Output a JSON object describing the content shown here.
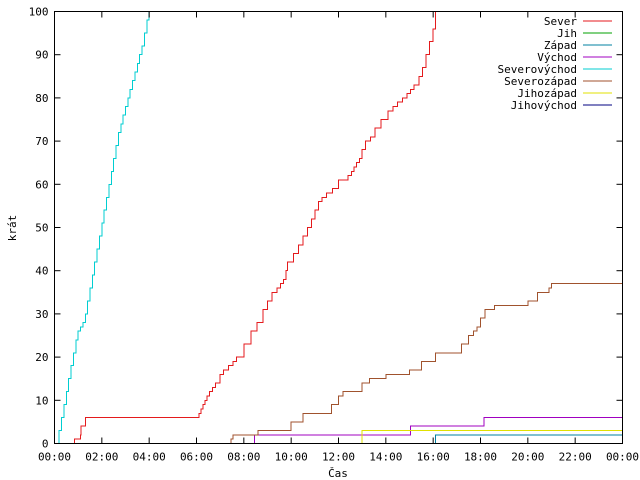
{
  "chart_data": {
    "type": "line",
    "xlabel": "Čas",
    "ylabel": "krát",
    "xlim": [
      0,
      24
    ],
    "ylim": [
      0,
      100
    ],
    "x_ticks": [
      {
        "value": 0,
        "label": "00:00"
      },
      {
        "value": 2,
        "label": "02:00"
      },
      {
        "value": 4,
        "label": "04:00"
      },
      {
        "value": 6,
        "label": "06:00"
      },
      {
        "value": 8,
        "label": "08:00"
      },
      {
        "value": 10,
        "label": "10:00"
      },
      {
        "value": 12,
        "label": "12:00"
      },
      {
        "value": 14,
        "label": "14:00"
      },
      {
        "value": 16,
        "label": "16:00"
      },
      {
        "value": 18,
        "label": "18:00"
      },
      {
        "value": 20,
        "label": "20:00"
      },
      {
        "value": 22,
        "label": "22:00"
      },
      {
        "value": 24,
        "label": "00:00"
      }
    ],
    "y_ticks": [
      {
        "value": 0,
        "label": "0"
      },
      {
        "value": 10,
        "label": "10"
      },
      {
        "value": 20,
        "label": "20"
      },
      {
        "value": 30,
        "label": "30"
      },
      {
        "value": 40,
        "label": "40"
      },
      {
        "value": 50,
        "label": "50"
      },
      {
        "value": 60,
        "label": "60"
      },
      {
        "value": 70,
        "label": "70"
      },
      {
        "value": 80,
        "label": "80"
      },
      {
        "value": 90,
        "label": "90"
      },
      {
        "value": 100,
        "label": "100"
      }
    ],
    "grid": false,
    "legend_position": "top-right",
    "series": [
      {
        "name": "Sever",
        "color": "#e41a1c",
        "x": [
          0.83,
          0.85,
          1.09,
          1.13,
          1.3,
          6.03,
          6.1,
          6.18,
          6.27,
          6.35,
          6.45,
          6.55,
          6.68,
          6.8,
          7.0,
          7.15,
          7.35,
          7.55,
          7.7,
          8.0,
          8.3,
          8.55,
          8.8,
          9.0,
          9.2,
          9.4,
          9.55,
          9.68,
          9.78,
          9.85,
          10.1,
          10.3,
          10.5,
          10.7,
          10.85,
          11.0,
          11.15,
          11.3,
          11.5,
          11.75,
          12.0,
          12.25,
          12.4,
          12.55,
          12.65,
          12.75,
          12.88,
          13.0,
          13.15,
          13.35,
          13.55,
          13.8,
          14.1,
          14.3,
          14.5,
          14.7,
          14.9,
          15.05,
          15.2,
          15.4,
          15.55,
          15.7,
          15.85,
          16.0,
          16.1
        ],
        "y": [
          0,
          1,
          2,
          4,
          6,
          6,
          7,
          8,
          9,
          10,
          11,
          12,
          13,
          14,
          16,
          17,
          18,
          19,
          20,
          23,
          26,
          28,
          31,
          33,
          35,
          36,
          37,
          38,
          40,
          42,
          44,
          46,
          48,
          50,
          52,
          54,
          56,
          57,
          58,
          59,
          61,
          61,
          62,
          63,
          64,
          65,
          66,
          68,
          70,
          71,
          73,
          75,
          77,
          78,
          79,
          80,
          81,
          82,
          83,
          85,
          87,
          90,
          93,
          96,
          100
        ]
      },
      {
        "name": "Jih",
        "color": "#00a000",
        "x": [],
        "y": []
      },
      {
        "name": "Západ",
        "color": "#0080a0",
        "x": [
          16.05,
          16.1,
          24.0
        ],
        "y": [
          0,
          2,
          2
        ]
      },
      {
        "name": "Východ",
        "color": "#a000c0",
        "x": [
          8.4,
          8.45,
          15.0,
          15.05,
          18.1,
          18.15,
          24.0
        ],
        "y": [
          0,
          2,
          2,
          4,
          4,
          6,
          6
        ]
      },
      {
        "name": "Severovýchod",
        "color": "#00ced1",
        "x": [
          0.1,
          0.2,
          0.3,
          0.4,
          0.5,
          0.6,
          0.7,
          0.8,
          0.9,
          1.0,
          1.1,
          1.2,
          1.3,
          1.4,
          1.5,
          1.6,
          1.7,
          1.8,
          1.9,
          2.0,
          2.1,
          2.2,
          2.3,
          2.4,
          2.5,
          2.6,
          2.7,
          2.8,
          2.9,
          3.0,
          3.1,
          3.2,
          3.3,
          3.4,
          3.5,
          3.6,
          3.7,
          3.8,
          3.9,
          4.0
        ],
        "y": [
          0,
          3,
          6,
          9,
          12,
          15,
          18,
          21,
          24,
          26,
          27,
          28,
          30,
          33,
          36,
          39,
          42,
          45,
          48,
          51,
          54,
          57,
          60,
          63,
          66,
          69,
          72,
          74,
          76,
          78,
          80,
          82,
          84,
          86,
          88,
          90,
          92,
          95,
          98,
          100
        ]
      },
      {
        "name": "Severozápad",
        "color": "#a0522d",
        "x": [
          7.4,
          7.45,
          7.55,
          8.6,
          10.0,
          10.5,
          11.7,
          12.0,
          12.2,
          12.4,
          13.0,
          13.3,
          14.0,
          14.5,
          15.0,
          15.5,
          16.1,
          17.2,
          17.5,
          17.7,
          17.85,
          18.0,
          18.2,
          18.6,
          19.0,
          20.0,
          20.4,
          20.9,
          21.0,
          22.0,
          24.0
        ],
        "y": [
          0,
          1,
          2,
          3,
          5,
          7,
          9,
          11,
          12,
          12,
          14,
          15,
          16,
          16,
          17,
          19,
          21,
          23,
          25,
          26,
          27,
          29,
          31,
          32,
          32,
          33,
          35,
          36,
          37,
          37,
          37
        ]
      },
      {
        "name": "Jihozápad",
        "color": "#e0e000",
        "x": [
          12.95,
          13.0,
          24.0
        ],
        "y": [
          0,
          3,
          3
        ]
      },
      {
        "name": "Jihovýchod",
        "color": "#000080",
        "x": [],
        "y": []
      }
    ]
  }
}
